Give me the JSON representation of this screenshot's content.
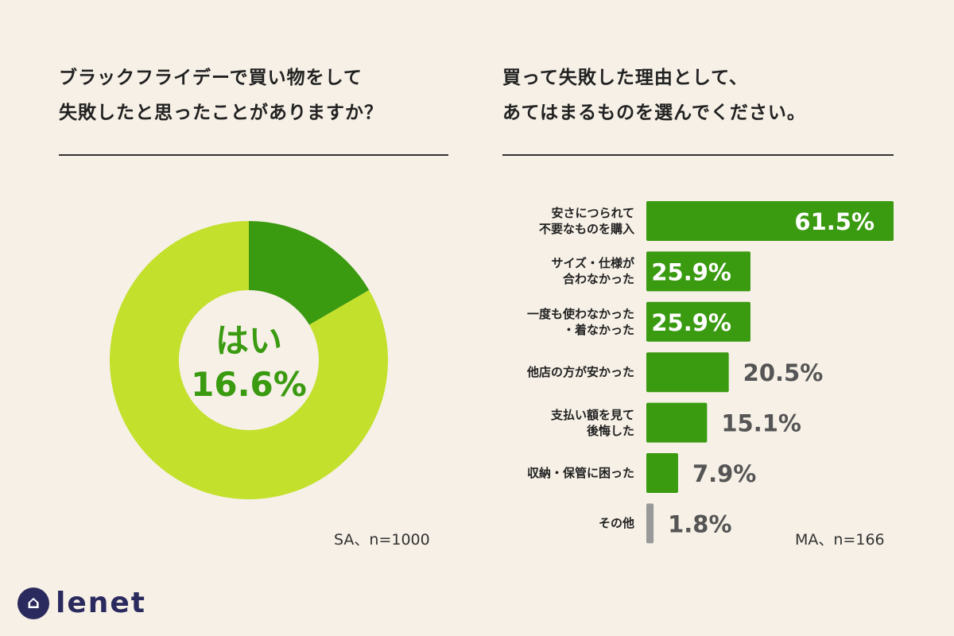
{
  "left": {
    "question": [
      "ブラックフライデーで買い物をして",
      "失敗したと思ったことがありますか？"
    ],
    "note": "SA、n=1000"
  },
  "right": {
    "question": [
      "買って失敗した理由として、",
      "あてはまるものを選んでください。"
    ],
    "note": "MA、n=166"
  },
  "logo": {
    "text": "lenet",
    "icon": "hanger-icon"
  },
  "colors": {
    "background": "#f6f0e6",
    "dark_green": "#3a9a10",
    "light_green": "#c3e02c",
    "gray": "#999999"
  },
  "chart_data": [
    {
      "type": "pie",
      "variant": "donut",
      "slices": [
        {
          "name": "はい",
          "value": 16.6,
          "color": "#3a9a10"
        },
        {
          "value": 83.4,
          "color": "#c3e02c"
        }
      ],
      "center_label": {
        "name": "はい",
        "value": "16.6%"
      }
    },
    {
      "type": "bar",
      "orientation": "horizontal",
      "categories": [
        [
          "安さにつられて",
          "不要なものを購入"
        ],
        [
          "サイズ・仕様が",
          "合わなかった"
        ],
        [
          "一度も使わなかった",
          "・着なかった"
        ],
        [
          "他店の方が安かった"
        ],
        [
          "支払い額を見て",
          "後悔した"
        ],
        [
          "収納・保管に困った"
        ],
        [
          "その他"
        ]
      ],
      "values": [
        61.5,
        25.9,
        25.9,
        20.5,
        15.1,
        7.9,
        1.8
      ],
      "labels": [
        "61.5%",
        "25.9%",
        "25.9%",
        "20.5%",
        "15.1%",
        "7.9%",
        "1.8%"
      ],
      "xlim": [
        0,
        61.5
      ]
    }
  ]
}
